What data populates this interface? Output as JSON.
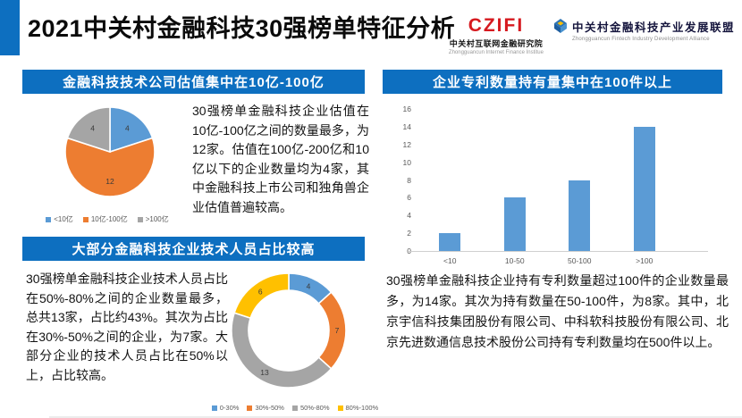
{
  "header": {
    "title": "2021中关村金融科技30强榜单特征分析",
    "logo_institute": {
      "acronym": "CZIFI",
      "name_cn": "中关村互联网金融研究院",
      "name_en": "Zhongguancun Internet Finance Institue"
    },
    "logo_alliance": {
      "name_cn": "中关村金融科技产业发展联盟",
      "name_en": "Zhongguancun Fintech Industry Development Alliance"
    }
  },
  "sections": {
    "valuation": {
      "banner": "金融科技技术公司估值集中在10亿-100亿",
      "body": "30强榜单金融科技企业估值在10亿-100亿之间的数量最多，为12家。估值在100亿-200亿和10亿以下的企业数量均为4家，其中金融科技上市公司和独角兽企业估值普遍较高。"
    },
    "staff": {
      "banner": "大部分金融科技企业技术人员占比较高",
      "body": "30强榜单金融科技企业技术人员占比在50%-80%之间的企业数量最多，总共13家，占比约43%。其次为占比在30%-50%之间的企业，为7家。大部分企业的技术人员占比在50%以上，占比较高。"
    },
    "patents": {
      "banner": "企业专利数量持有量集中在100件以上",
      "body": "30强榜单金融科技企业持有专利数量超过100件的企业数量最多，为14家。其次为持有数量在50-100件，为8家。其中，北京宇信科技集团股份有限公司、中科软科技股份有限公司、北京先进数通信息技术股份公司持有专利数量均在500件以上。"
    }
  },
  "colors": {
    "banner_blue": "#0d6fc0",
    "chart_blue": "#5B9BD5",
    "chart_orange": "#ED7D31",
    "chart_gray": "#A5A5A5",
    "chart_yellow": "#FFC000"
  },
  "chart_data": [
    {
      "id": "valuation-pie",
      "type": "pie",
      "title": "金融科技技术公司估值集中在10亿-100亿",
      "categories": [
        "<10亿",
        "10亿-100亿",
        ">100亿"
      ],
      "values": [
        4,
        12,
        4
      ],
      "colors": [
        "#5B9BD5",
        "#ED7D31",
        "#A5A5A5"
      ],
      "legend_position": "bottom"
    },
    {
      "id": "staff-donut",
      "type": "pie",
      "subtype": "donut",
      "title": "大部分金融科技企业技术人员占比较高",
      "categories": [
        "0-30%",
        "30%-50%",
        "50%-80%",
        "80%-100%"
      ],
      "values": [
        4,
        7,
        13,
        6
      ],
      "colors": [
        "#5B9BD5",
        "#ED7D31",
        "#A5A5A5",
        "#FFC000"
      ],
      "legend_position": "bottom"
    },
    {
      "id": "patents-bar",
      "type": "bar",
      "title": "企业专利数量持有量集中在100件以上",
      "categories": [
        "<10",
        "10-50",
        "50-100",
        ">100"
      ],
      "values": [
        2,
        6,
        8,
        14
      ],
      "ylim": [
        0,
        16
      ],
      "ytick_step": 2,
      "bar_color": "#5B9BD5",
      "grid": false,
      "legend_position": "none"
    }
  ]
}
